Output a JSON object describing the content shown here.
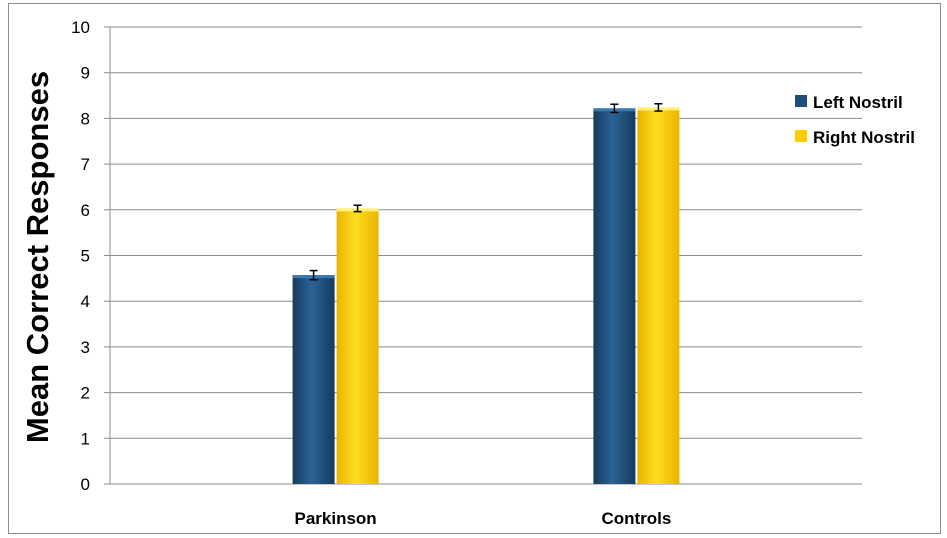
{
  "chart_data": {
    "type": "bar",
    "title": "",
    "xlabel": "",
    "ylabel": "Mean Correct Responses",
    "categories": [
      "Parkinson",
      "Controls"
    ],
    "series": [
      {
        "name": "Left Nostril",
        "values": [
          4.57,
          8.22
        ],
        "errors": [
          0.1,
          0.09
        ],
        "color": "#1f4e79"
      },
      {
        "name": "Right Nostril",
        "values": [
          6.03,
          8.24
        ],
        "errors": [
          0.07,
          0.08
        ],
        "color": "#ffcc00"
      }
    ],
    "ylim": [
      0,
      10
    ],
    "yticks": [
      "0",
      "1",
      "2",
      "3",
      "4",
      "5",
      "6",
      "7",
      "8",
      "9",
      "10"
    ],
    "grid": true,
    "legend_position": "right"
  }
}
